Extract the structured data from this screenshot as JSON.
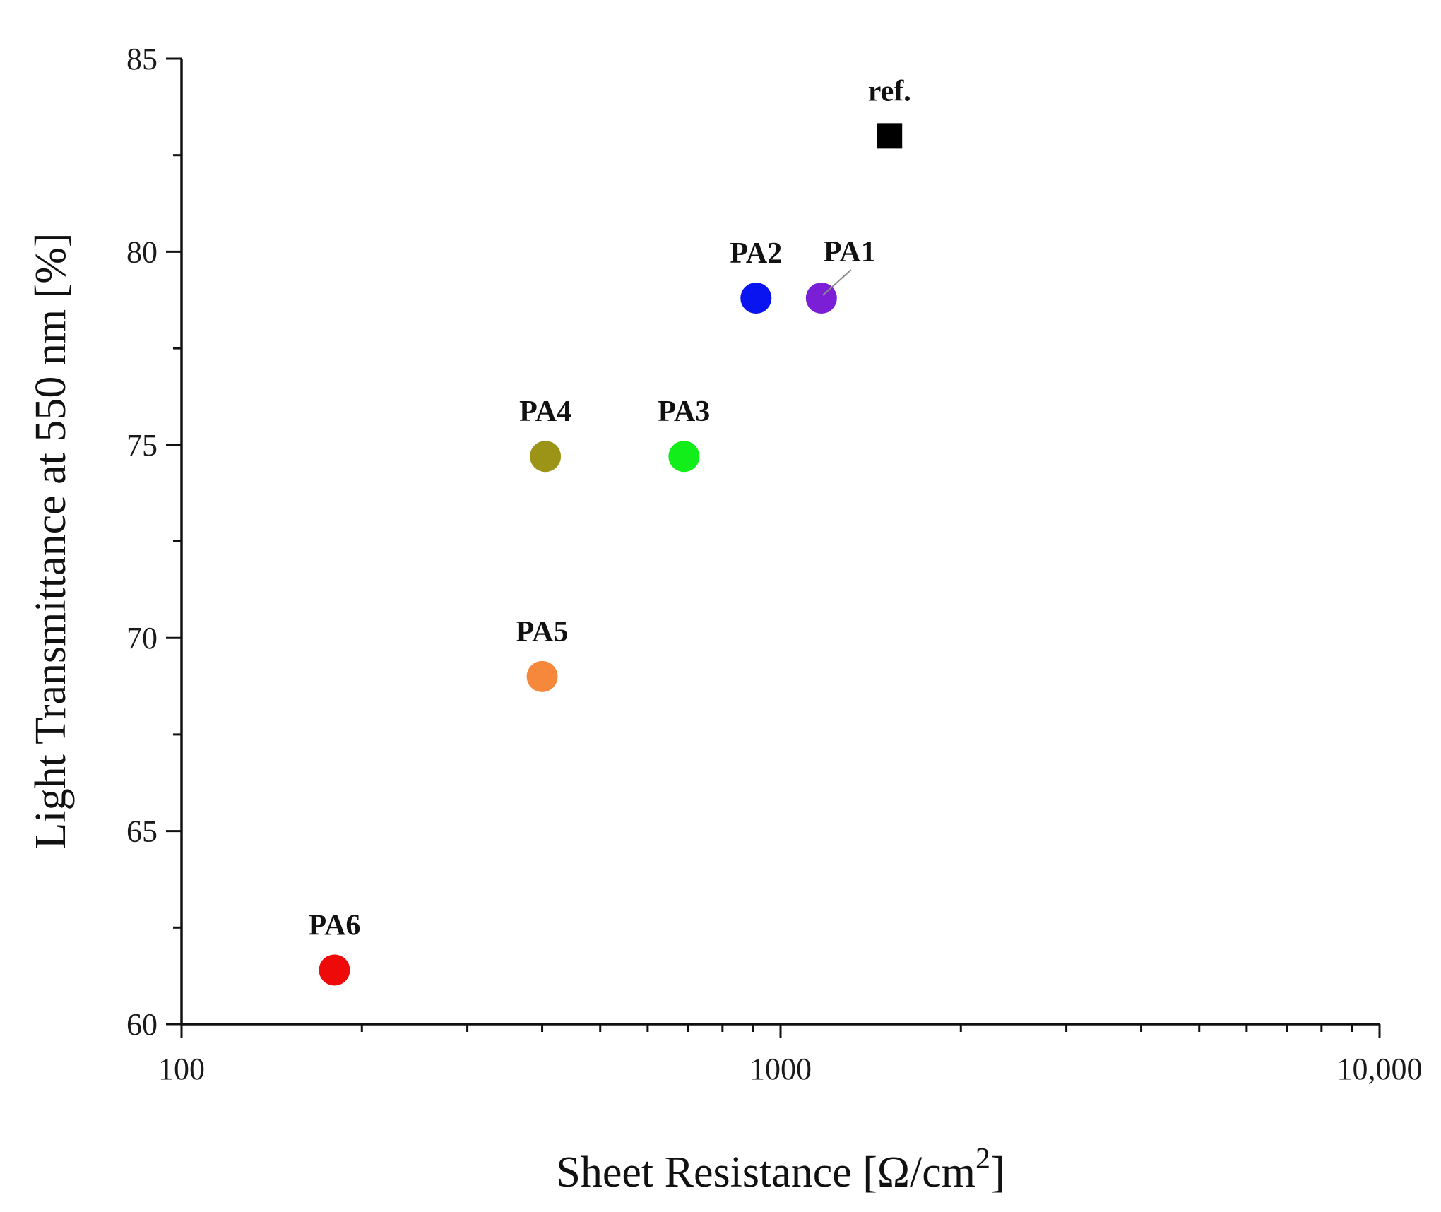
{
  "chart_data": {
    "type": "scatter",
    "title": "",
    "xlabel": "Sheet Resistance [Ω/cm",
    "xlabel_superscript": "2",
    "xlabel_suffix": "]",
    "ylabel": "Light Transmittance at 550 nm [%]",
    "xscale": "log",
    "xlim": [
      100,
      10000
    ],
    "ylim": [
      60,
      85
    ],
    "x_ticks": [
      {
        "value": 100,
        "label": "100"
      },
      {
        "value": 1000,
        "label": "1000"
      },
      {
        "value": 10000,
        "label": "10,000"
      }
    ],
    "y_ticks": [
      {
        "value": 60,
        "label": "60"
      },
      {
        "value": 65,
        "label": "65"
      },
      {
        "value": 70,
        "label": "70"
      },
      {
        "value": 75,
        "label": "75"
      },
      {
        "value": 80,
        "label": "80"
      },
      {
        "value": 85,
        "label": "85"
      }
    ],
    "grid": false,
    "points": [
      {
        "name": "ref.",
        "x": 1520,
        "y": 83.0,
        "color": "#000000",
        "marker": "square",
        "label_pos": "above"
      },
      {
        "name": "PA1",
        "x": 1170,
        "y": 78.8,
        "color": "#7a1fd6",
        "marker": "circle",
        "label_pos": "upper-right-leader"
      },
      {
        "name": "PA2",
        "x": 910,
        "y": 78.8,
        "color": "#0a14f0",
        "marker": "circle",
        "label_pos": "above"
      },
      {
        "name": "PA3",
        "x": 690,
        "y": 74.7,
        "color": "#11ee1a",
        "marker": "circle",
        "label_pos": "above"
      },
      {
        "name": "PA4",
        "x": 405,
        "y": 74.7,
        "color": "#9c9416",
        "marker": "circle",
        "label_pos": "above"
      },
      {
        "name": "PA5",
        "x": 400,
        "y": 69.0,
        "color": "#f5883a",
        "marker": "circle",
        "label_pos": "above"
      },
      {
        "name": "PA6",
        "x": 180,
        "y": 61.4,
        "color": "#ef0a0a",
        "marker": "circle",
        "label_pos": "above"
      }
    ]
  }
}
